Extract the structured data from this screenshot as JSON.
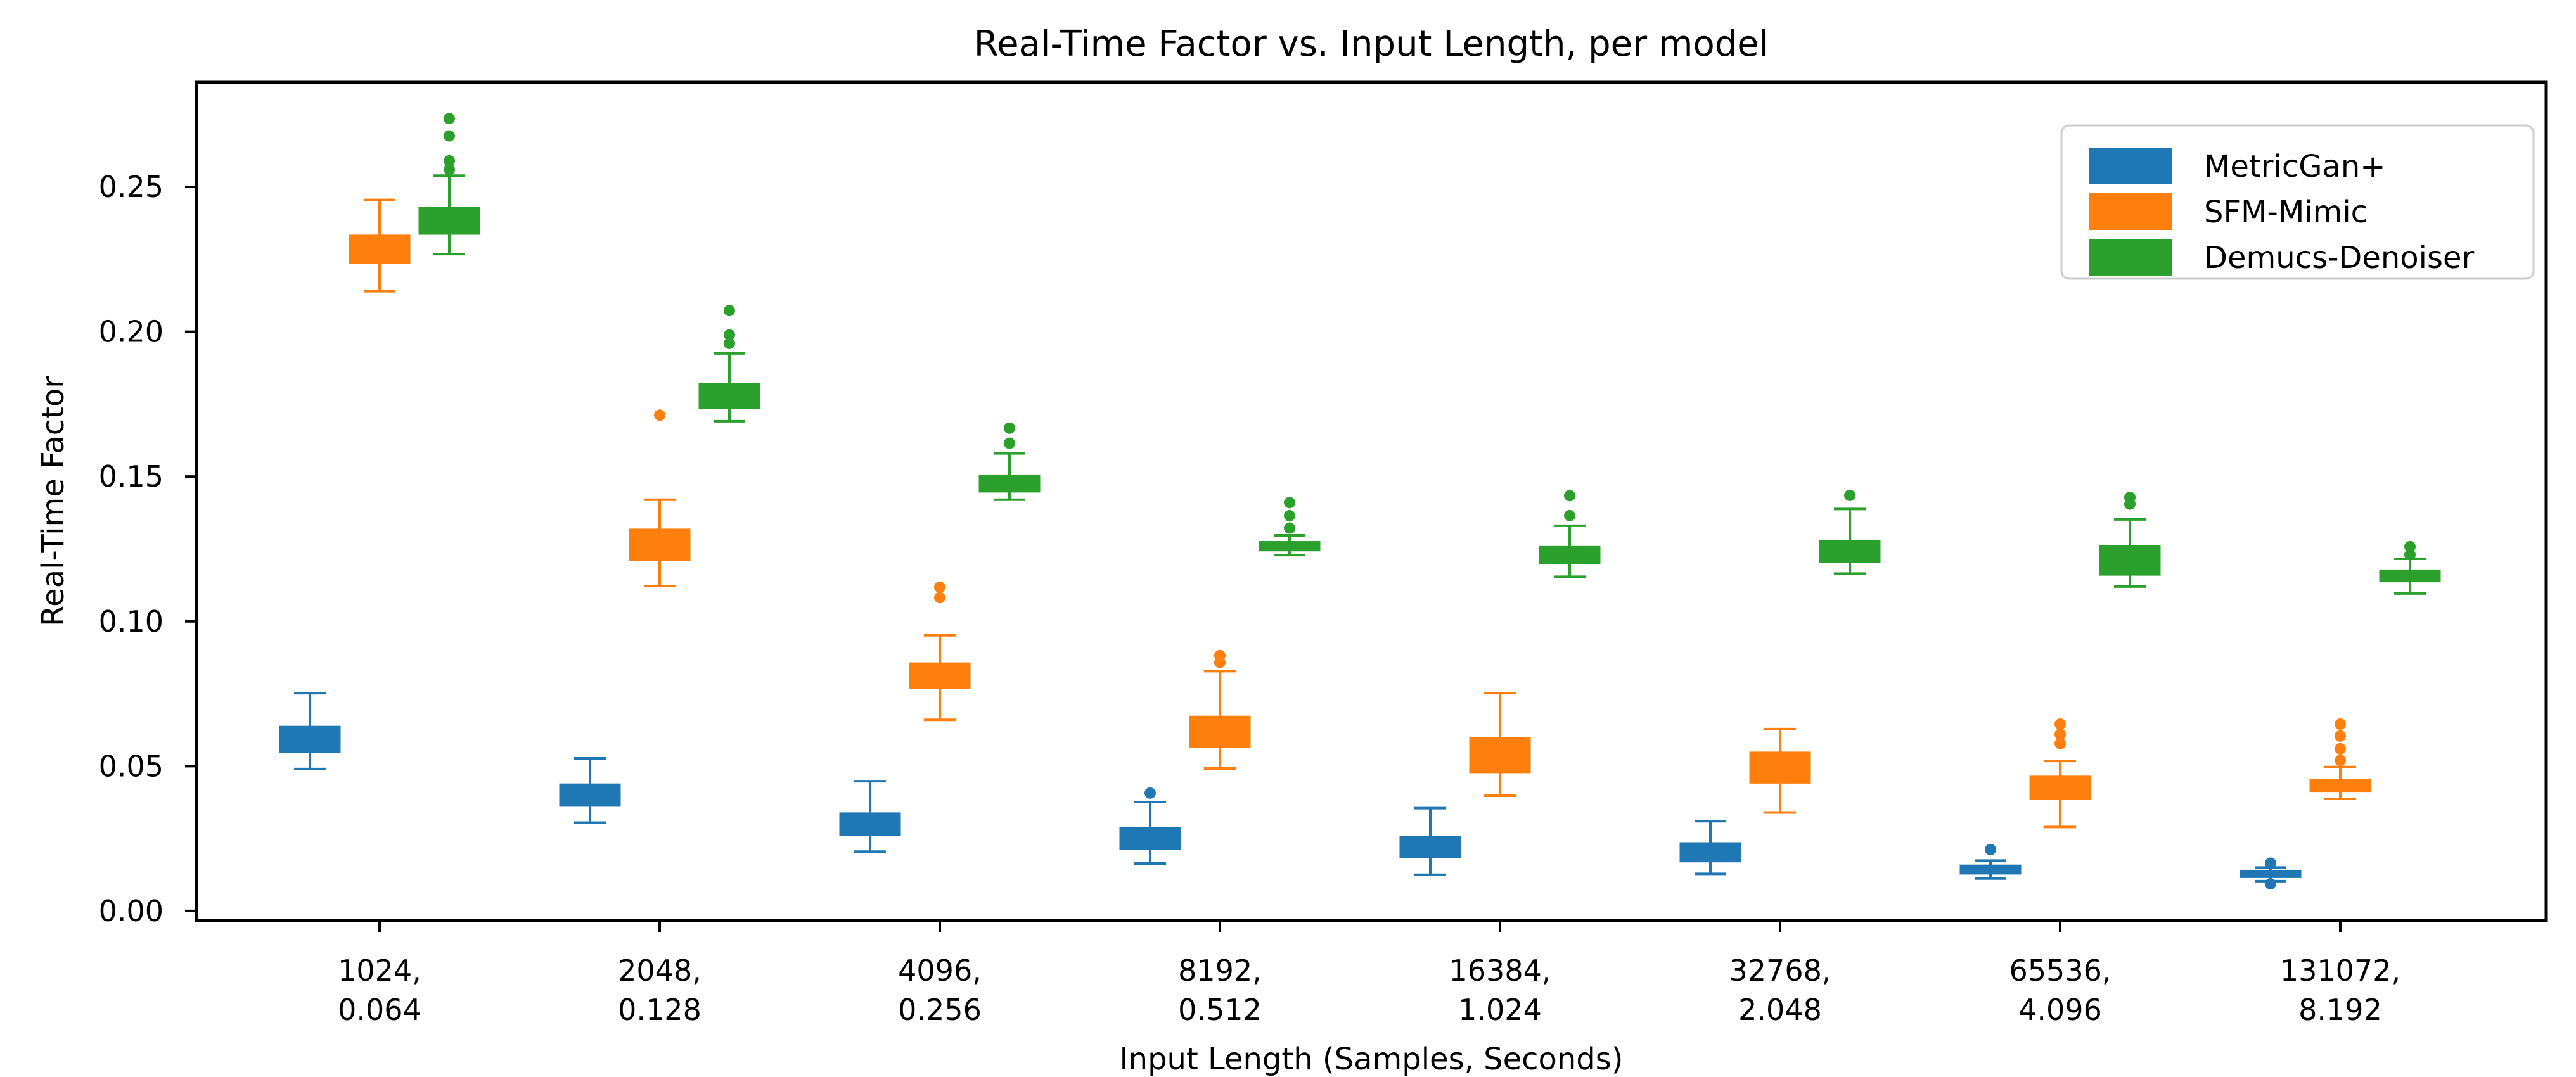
{
  "title": "Real-Time Factor vs. Input Length, per model",
  "axes": {
    "xlabel": "Input Length (Samples, Seconds)",
    "ylabel": "Real-Time Factor",
    "yticks": [
      "0.00",
      "0.05",
      "0.10",
      "0.15",
      "0.20",
      "0.25"
    ],
    "ytick_values": [
      0.0,
      0.05,
      0.1,
      0.15,
      0.2,
      0.25
    ],
    "grid": false
  },
  "legend": {
    "position": "upper right"
  },
  "chart_data": {
    "type": "boxplot",
    "title": "Real-Time Factor vs. Input Length, per model",
    "xlabel": "Input Length (Samples, Seconds)",
    "ylabel": "Real-Time Factor",
    "ylim": [
      -0.0033,
      0.2861
    ],
    "grid": false,
    "legend_position": "upper right",
    "categories": [
      {
        "samples": "1024,",
        "seconds": "0.064"
      },
      {
        "samples": "2048,",
        "seconds": "0.128"
      },
      {
        "samples": "4096,",
        "seconds": "0.256"
      },
      {
        "samples": "8192,",
        "seconds": "0.512"
      },
      {
        "samples": "16384,",
        "seconds": "1.024"
      },
      {
        "samples": "32768,",
        "seconds": "2.048"
      },
      {
        "samples": "65536,",
        "seconds": "4.096"
      },
      {
        "samples": "131072,",
        "seconds": "8.192"
      }
    ],
    "series": [
      {
        "name": "MetricGan+",
        "color": "#1f77b4",
        "boxes": [
          {
            "whislo": 0.049,
            "q1": 0.0547,
            "med": 0.059,
            "q3": 0.0637,
            "whishi": 0.0752,
            "fliers": []
          },
          {
            "whislo": 0.0305,
            "q1": 0.0362,
            "med": 0.0398,
            "q3": 0.0438,
            "whishi": 0.0527,
            "fliers": []
          },
          {
            "whislo": 0.0205,
            "q1": 0.0262,
            "med": 0.03,
            "q3": 0.0338,
            "whishi": 0.0448,
            "fliers": []
          },
          {
            "whislo": 0.0164,
            "q1": 0.0212,
            "med": 0.025,
            "q3": 0.0287,
            "whishi": 0.0376,
            "fliers": [
              0.0407
            ]
          },
          {
            "whislo": 0.0125,
            "q1": 0.0185,
            "med": 0.022,
            "q3": 0.0258,
            "whishi": 0.0355,
            "fliers": []
          },
          {
            "whislo": 0.0128,
            "q1": 0.017,
            "med": 0.0198,
            "q3": 0.0235,
            "whishi": 0.031,
            "fliers": []
          },
          {
            "whislo": 0.0112,
            "q1": 0.0128,
            "med": 0.0142,
            "q3": 0.0158,
            "whishi": 0.0174,
            "fliers": [
              0.0212
            ]
          },
          {
            "whislo": 0.0103,
            "q1": 0.0116,
            "med": 0.0127,
            "q3": 0.014,
            "whishi": 0.015,
            "fliers": [
              0.0165,
              0.0094
            ]
          }
        ]
      },
      {
        "name": "SFM-Mimic",
        "color": "#ff7f0e",
        "boxes": [
          {
            "whislo": 0.214,
            "q1": 0.2237,
            "med": 0.2285,
            "q3": 0.2333,
            "whishi": 0.2455,
            "fliers": []
          },
          {
            "whislo": 0.1122,
            "q1": 0.121,
            "med": 0.1262,
            "q3": 0.1318,
            "whishi": 0.142,
            "fliers": [
              0.1712
            ]
          },
          {
            "whislo": 0.066,
            "q1": 0.0768,
            "med": 0.0812,
            "q3": 0.0856,
            "whishi": 0.0952,
            "fliers": [
              0.1082,
              0.1118
            ]
          },
          {
            "whislo": 0.0492,
            "q1": 0.0566,
            "med": 0.0618,
            "q3": 0.0672,
            "whishi": 0.0828,
            "fliers": [
              0.0858,
              0.0882
            ]
          },
          {
            "whislo": 0.0398,
            "q1": 0.0478,
            "med": 0.0535,
            "q3": 0.0598,
            "whishi": 0.0752,
            "fliers": []
          },
          {
            "whislo": 0.034,
            "q1": 0.0442,
            "med": 0.0492,
            "q3": 0.0548,
            "whishi": 0.0628,
            "fliers": []
          },
          {
            "whislo": 0.029,
            "q1": 0.0385,
            "med": 0.043,
            "q3": 0.0465,
            "whishi": 0.0518,
            "fliers": [
              0.0578,
              0.061,
              0.0645
            ]
          },
          {
            "whislo": 0.0387,
            "q1": 0.0413,
            "med": 0.0433,
            "q3": 0.0453,
            "whishi": 0.0497,
            "fliers": [
              0.052,
              0.056,
              0.0604,
              0.0645
            ]
          }
        ]
      },
      {
        "name": "Demucs-Denoiser",
        "color": "#2ca02c",
        "boxes": [
          {
            "whislo": 0.2268,
            "q1": 0.2337,
            "med": 0.2383,
            "q3": 0.2428,
            "whishi": 0.2539,
            "fliers": [
              0.256,
              0.259,
              0.2676,
              0.2736
            ]
          },
          {
            "whislo": 0.1691,
            "q1": 0.1736,
            "med": 0.1778,
            "q3": 0.182,
            "whishi": 0.1925,
            "fliers": [
              0.196,
              0.1989,
              0.2073
            ]
          },
          {
            "whislo": 0.142,
            "q1": 0.1447,
            "med": 0.1476,
            "q3": 0.1505,
            "whishi": 0.158,
            "fliers": [
              0.1615,
              0.1667
            ]
          },
          {
            "whislo": 0.1229,
            "q1": 0.1244,
            "med": 0.1259,
            "q3": 0.1275,
            "whishi": 0.1297,
            "fliers": [
              0.1322,
              0.1365,
              0.141
            ]
          },
          {
            "whislo": 0.1154,
            "q1": 0.1199,
            "med": 0.1228,
            "q3": 0.1258,
            "whishi": 0.133,
            "fliers": [
              0.1365,
              0.1434
            ]
          },
          {
            "whislo": 0.1165,
            "q1": 0.1205,
            "med": 0.1242,
            "q3": 0.1278,
            "whishi": 0.1388,
            "fliers": [
              0.1435
            ]
          },
          {
            "whislo": 0.112,
            "q1": 0.116,
            "med": 0.1205,
            "q3": 0.1262,
            "whishi": 0.1352,
            "fliers": [
              0.1405,
              0.1428
            ]
          },
          {
            "whislo": 0.1096,
            "q1": 0.1137,
            "med": 0.1157,
            "q3": 0.1177,
            "whishi": 0.1216,
            "fliers": [
              0.123,
              0.1258
            ]
          }
        ]
      }
    ]
  }
}
